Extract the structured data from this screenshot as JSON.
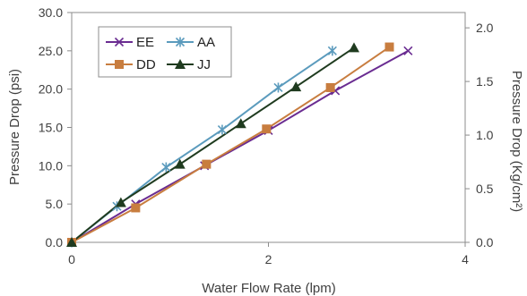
{
  "chart_data": {
    "type": "line",
    "xlabel": "Water Flow Rate (lpm)",
    "ylabel": "Pressure Drop (psi)",
    "y2label": "Pressure Drop (Kg/cm²)",
    "xlim": [
      0,
      4
    ],
    "ylim": [
      0,
      30
    ],
    "y2lim": [
      0,
      2.142857
    ],
    "xticks": [
      "0",
      "2",
      "4"
    ],
    "yticks": [
      "0.0",
      "5.0",
      "10.0",
      "15.0",
      "20.0",
      "25.0",
      "30.0"
    ],
    "y2ticks": [
      "0.0",
      "0.5",
      "1.0",
      "1.5",
      "2.0"
    ],
    "legend_position": "top-left",
    "series": [
      {
        "name": "EE",
        "color": "#6a2c91",
        "marker": "x",
        "x": [
          0,
          0.65,
          1.35,
          2.0,
          2.68,
          3.42
        ],
        "y": [
          0,
          5.0,
          10.0,
          14.6,
          19.8,
          25.0
        ]
      },
      {
        "name": "AA",
        "color": "#5b9bbd",
        "marker": "asterisk",
        "x": [
          0,
          0.46,
          0.96,
          1.53,
          2.1,
          2.65
        ],
        "y": [
          0,
          4.7,
          9.8,
          14.7,
          20.2,
          25.0
        ]
      },
      {
        "name": "DD",
        "color": "#c87d3f",
        "marker": "square",
        "x": [
          0,
          0.65,
          1.37,
          1.98,
          2.63,
          3.23
        ],
        "y": [
          0,
          4.5,
          10.2,
          14.8,
          20.2,
          25.5
        ]
      },
      {
        "name": "JJ",
        "color": "#1f3b1f",
        "marker": "triangle",
        "x": [
          0,
          0.5,
          1.1,
          1.72,
          2.28,
          2.87
        ],
        "y": [
          0,
          5.2,
          10.2,
          15.5,
          20.3,
          25.4
        ]
      }
    ]
  }
}
